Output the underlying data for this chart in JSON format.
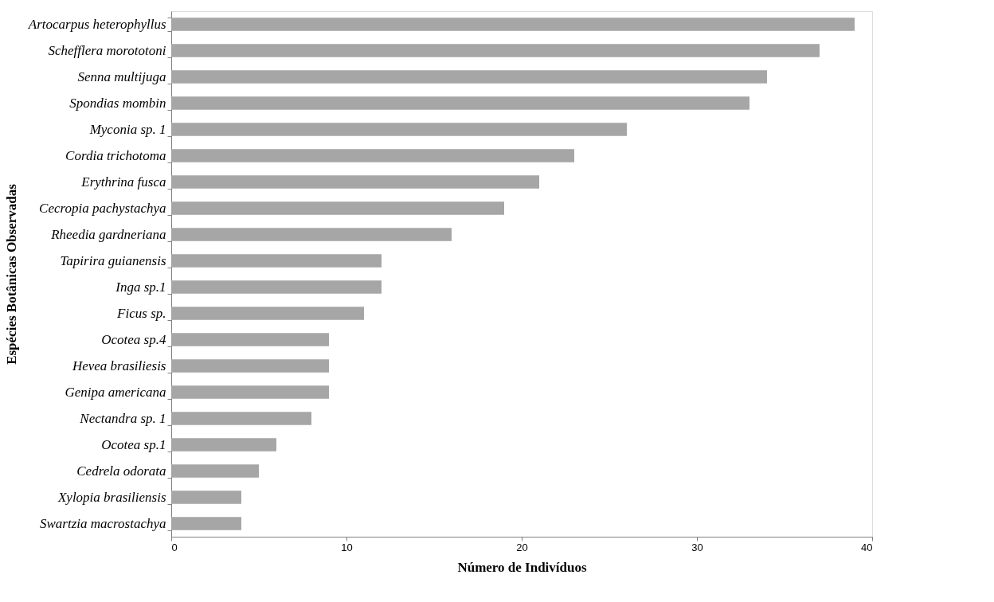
{
  "chart_data": {
    "type": "bar",
    "orientation": "horizontal",
    "categories": [
      "Artocarpus heterophyllus",
      "Schefflera morototoni",
      "Senna multijuga",
      "Spondias mombin",
      "Myconia sp. 1",
      "Cordia trichotoma",
      "Erythrina fusca",
      "Cecropia pachystachya",
      "Rheedia gardneriana",
      "Tapirira guianensis",
      "Inga sp.1",
      "Ficus sp.",
      "Ocotea sp.4",
      "Hevea brasiliesis",
      "Genipa americana",
      "Nectandra sp. 1",
      "Ocotea sp.1",
      "Cedrela odorata",
      "Xylopia brasiliensis",
      "Swartzia macrostachya"
    ],
    "values": [
      39,
      37,
      34,
      33,
      26,
      23,
      21,
      19,
      16,
      12,
      12,
      11,
      9,
      9,
      9,
      8,
      6,
      5,
      4,
      4
    ],
    "color": "#a6a6a6",
    "xlim": [
      0,
      40
    ],
    "xticks": [
      0,
      10,
      20,
      30,
      40
    ],
    "xlabel": "Número de Indivíduos",
    "ylabel": "Espécies Botânicas Observadas",
    "grid": false
  }
}
